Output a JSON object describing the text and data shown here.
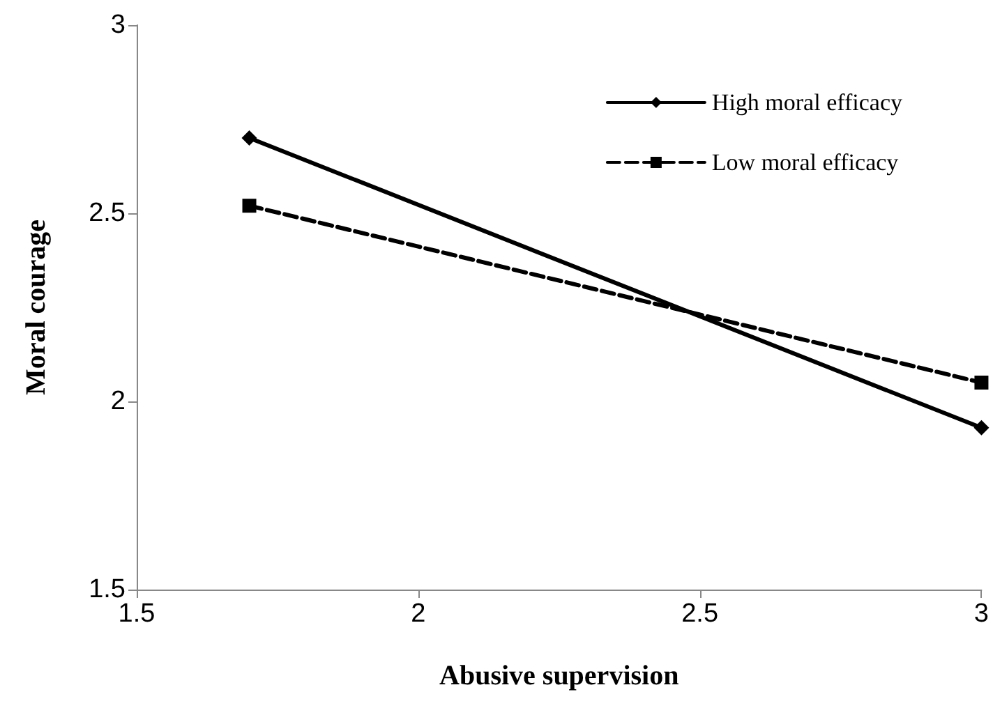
{
  "chart_data": {
    "type": "line",
    "xlabel": "Abusive supervision",
    "ylabel": "Moral courage",
    "xlim": [
      1.5,
      3
    ],
    "xticks": [
      1.5,
      2,
      2.5,
      3
    ],
    "ylim": [
      1.5,
      3
    ],
    "yticks": [
      1.5,
      2,
      2.5,
      3
    ],
    "grid": false,
    "legend": "top right",
    "x": [
      1.7,
      3
    ],
    "series": [
      {
        "name": "High moral efficacy",
        "color": "#000000",
        "values": [
          2.7,
          1.93
        ],
        "marker": "diamond",
        "line_style": "solid"
      },
      {
        "name": "Low moral efficacy",
        "color": "#000000",
        "values": [
          2.52,
          2.05
        ],
        "marker": "square",
        "line_style": "dashed"
      }
    ]
  }
}
